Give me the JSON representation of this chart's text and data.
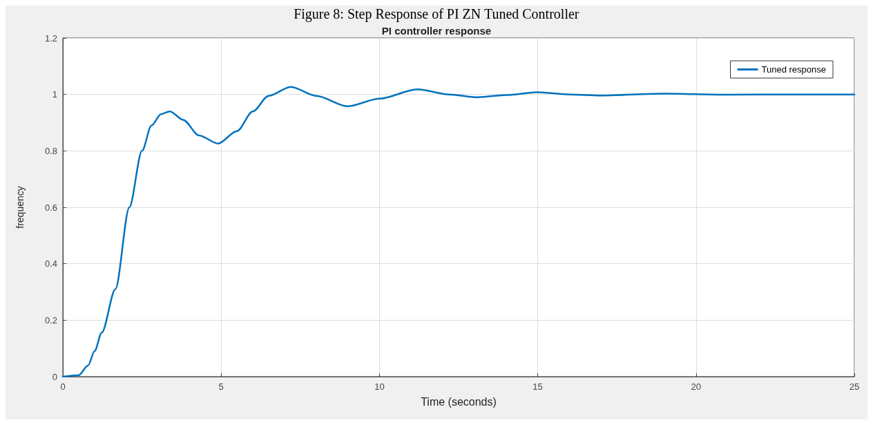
{
  "chart_data": {
    "type": "line",
    "title": "PI controller response",
    "xlabel": "Time (seconds)",
    "ylabel": "frequency",
    "annotations": [
      "Figure 8: Step Response of PI ZN Tuned Controller"
    ],
    "x": [
      0,
      0.5,
      0.8,
      1.0,
      1.23,
      1.66,
      2.1,
      2.5,
      2.8,
      3.1,
      3.38,
      3.8,
      4.3,
      4.9,
      5.5,
      6.0,
      6.5,
      7.2,
      8.0,
      9.0,
      10.0,
      11.2,
      12.2,
      13.1,
      14,
      15,
      16,
      17,
      19,
      21,
      23,
      25
    ],
    "series": [
      {
        "name": "Tuned response",
        "color": "#0072bd",
        "values": [
          0,
          0.005,
          0.04,
          0.09,
          0.156,
          0.31,
          0.6,
          0.8,
          0.89,
          0.93,
          0.94,
          0.91,
          0.855,
          0.826,
          0.87,
          0.94,
          0.995,
          1.027,
          0.995,
          0.958,
          0.985,
          1.018,
          1.0,
          0.99,
          0.998,
          1.008,
          1.0,
          0.996,
          1.003,
          0.999,
          1.0,
          1.0
        ]
      }
    ],
    "xlim": [
      0,
      25
    ],
    "xticks": [
      0,
      5,
      10,
      15,
      20,
      25
    ],
    "ylim": [
      0,
      1.2
    ],
    "yticks": [
      0,
      0.2,
      0.4,
      0.6,
      0.8,
      1,
      1.2
    ],
    "grid": true,
    "legend": "top right",
    "marker": "none",
    "line_style": "solid"
  }
}
